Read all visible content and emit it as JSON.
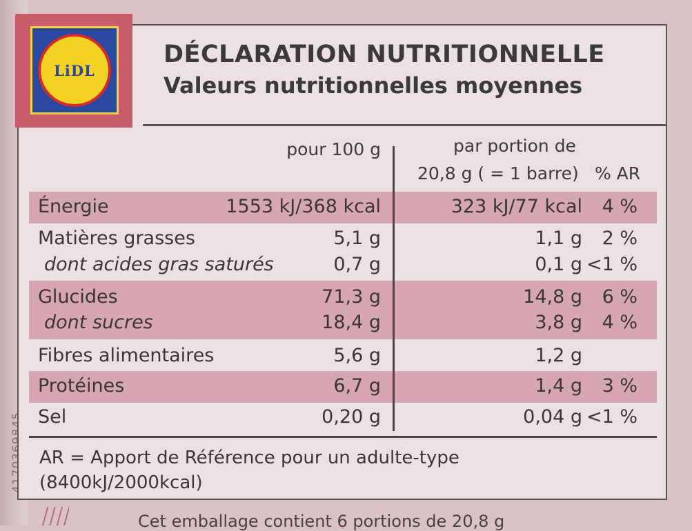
{
  "brand": {
    "logo_text": "LiDL"
  },
  "side_code": "4170369845",
  "bottom_text": "Cet emballage contient 6 portions de 20,8 g",
  "title": "DÉCLARATION NUTRITIONNELLE",
  "subtitle": "Valeurs nutritionnelles moyennes",
  "headers": {
    "per100": "pour 100 g",
    "portion_line1": "par portion de",
    "portion_line2": "20,8 g ( = 1 barre)",
    "ar": "% AR"
  },
  "rows": [
    {
      "label": "Énergie",
      "per100": "1553 kJ/368 kcal",
      "portion": "323 kJ/77 kcal",
      "ar": "4 %"
    },
    {
      "label": "Matières grasses",
      "per100": "5,1 g",
      "portion": "1,1 g",
      "ar": "2 %"
    },
    {
      "label": "dont acides gras saturés",
      "per100": "0,7 g",
      "portion": "0,1 g",
      "ar": "<1 %"
    },
    {
      "label": "Glucides",
      "per100": "71,3 g",
      "portion": "14,8 g",
      "ar": "6 %"
    },
    {
      "label": "dont sucres",
      "per100": "18,4 g",
      "portion": "3,8 g",
      "ar": "4 %"
    },
    {
      "label": "Fibres alimentaires",
      "per100": "5,6 g",
      "portion": "1,2 g",
      "ar": ""
    },
    {
      "label": "Protéines",
      "per100": "6,7 g",
      "portion": "1,4 g",
      "ar": "3 %"
    },
    {
      "label": "Sel",
      "per100": "0,20 g",
      "portion": "0,04 g",
      "ar": "<1 %"
    }
  ],
  "footnote": {
    "line1": "AR = Apport de Référence pour un adulte-type",
    "line2": "(8400kJ/2000kcal)"
  }
}
